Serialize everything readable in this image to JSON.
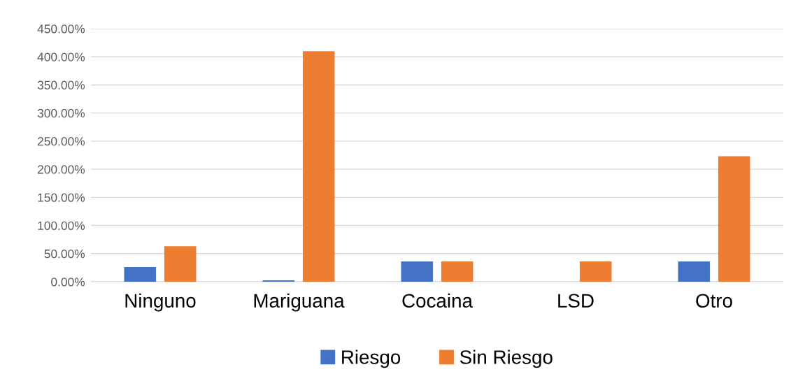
{
  "chart_data": {
    "type": "bar",
    "categories": [
      "Ninguno",
      "Mariguana",
      "Cocaina",
      "LSD",
      "Otro"
    ],
    "series": [
      {
        "name": "Riesgo",
        "color": "#4472c4",
        "values": [
          26,
          2.5,
          36,
          0,
          36
        ]
      },
      {
        "name": "Sin Riesgo",
        "color": "#ed7d31",
        "values": [
          63,
          410,
          36,
          36,
          223
        ]
      }
    ],
    "ylim": [
      0,
      450
    ],
    "yticks": [
      {
        "value": 0,
        "label": "0.00%"
      },
      {
        "value": 50,
        "label": "50.00%"
      },
      {
        "value": 100,
        "label": "100.00%"
      },
      {
        "value": 150,
        "label": "150.00%"
      },
      {
        "value": 200,
        "label": "200.00%"
      },
      {
        "value": 250,
        "label": "250.00%"
      },
      {
        "value": 300,
        "label": "300.00%"
      },
      {
        "value": 350,
        "label": "350.00%"
      },
      {
        "value": 400,
        "label": "400.00%"
      },
      {
        "value": 450,
        "label": "450.00%"
      }
    ],
    "grid": "y",
    "legend": "bottom"
  }
}
